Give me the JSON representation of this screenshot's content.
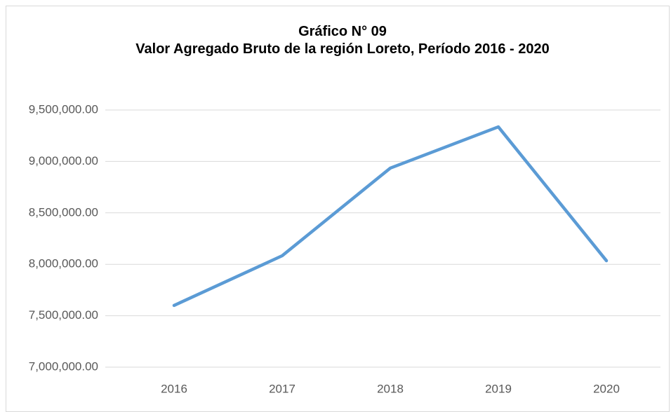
{
  "chart_data": {
    "type": "line",
    "title": "Gráfico N° 09",
    "subtitle": "Valor Agregado Bruto de la región Loreto, Período 2016 - 2020",
    "categories": [
      "2016",
      "2017",
      "2018",
      "2019",
      "2020"
    ],
    "values": [
      7600000,
      8083000,
      8935000,
      9336000,
      8035000
    ],
    "color": "#5b9bd5",
    "ylim": [
      7000000,
      9500000
    ],
    "yticks": [
      {
        "value": 7000000,
        "label": "7,000,000.00"
      },
      {
        "value": 7500000,
        "label": "7,500,000.00"
      },
      {
        "value": 8000000,
        "label": "8,000,000.00"
      },
      {
        "value": 8500000,
        "label": "8,500,000.00"
      },
      {
        "value": 9000000,
        "label": "9,000,000.00"
      },
      {
        "value": 9500000,
        "label": "9,500,000.00"
      }
    ],
    "grid": true
  }
}
